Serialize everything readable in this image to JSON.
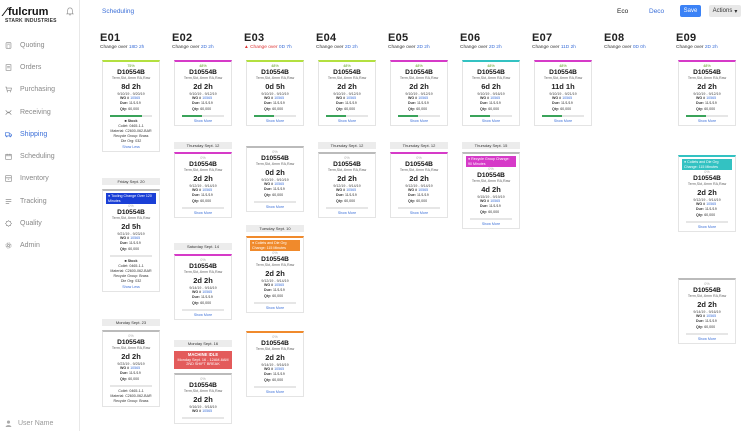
{
  "app": {
    "brand": "fulcrum",
    "company": "STARK INDUSTRIES"
  },
  "sidebar": {
    "items": [
      {
        "label": "Quoting",
        "icon": "calculator-icon",
        "active": false
      },
      {
        "label": "Orders",
        "icon": "orders-icon",
        "active": false
      },
      {
        "label": "Purchasing",
        "icon": "cart-icon",
        "active": false
      },
      {
        "label": "Receiving",
        "icon": "receiving-icon",
        "active": false
      },
      {
        "label": "Shipping",
        "icon": "truck-icon",
        "active": true
      },
      {
        "label": "Scheduling",
        "icon": "calendar-icon",
        "active": false
      },
      {
        "label": "Inventory",
        "icon": "inventory-icon",
        "active": false
      },
      {
        "label": "Tracking",
        "icon": "tracking-icon",
        "active": false
      },
      {
        "label": "Quality",
        "icon": "quality-icon",
        "active": false
      },
      {
        "label": "Admin",
        "icon": "gear-icon",
        "active": false
      }
    ],
    "user": "User Name"
  },
  "topbar": {
    "breadcrumb": "Scheduling",
    "tab_eco": "Eco",
    "tab_deco": "Deco",
    "save": "Save",
    "actions": "Actions"
  },
  "colors": {
    "accent": "#3b6fd8",
    "save": "#3b82f6",
    "lime": "#b3e040",
    "magenta": "#d63ac8",
    "teal": "#33c2c2",
    "orange": "#f08a2c",
    "idle": "#e35b5b",
    "blue_banner": "#1a3fd6"
  },
  "columns": [
    {
      "id": "E01",
      "prefix": "Change over ",
      "value": "18D 2h",
      "warn": false
    },
    {
      "id": "E02",
      "prefix": "Change over ",
      "value": "2D 2h",
      "warn": false
    },
    {
      "id": "E03",
      "prefix": "Change over ",
      "value": "0D 7h",
      "warn": true
    },
    {
      "id": "E04",
      "prefix": "Change over ",
      "value": "2D 2h",
      "warn": false
    },
    {
      "id": "E05",
      "prefix": "Change over ",
      "value": "2D 2h",
      "warn": false
    },
    {
      "id": "E06",
      "prefix": "Change over ",
      "value": "2D 2h",
      "warn": false
    },
    {
      "id": "E07",
      "prefix": "Change over ",
      "value": "11D 2h",
      "warn": false
    },
    {
      "id": "E08",
      "prefix": "Change over ",
      "value": "0D 0h",
      "warn": false
    },
    {
      "id": "E09",
      "prefix": "Change over ",
      "value": "2D 2h",
      "warn": false
    }
  ],
  "cards": {
    "e01a": {
      "pct": "75%",
      "wo": "D10554B",
      "sub": "Term,Skt,.6mm RA,Raw",
      "dur": "8d 2h",
      "dates": "9/10/19 - 9/20/19",
      "wo_label": "WO #",
      "wo_num": "10565",
      "due_label": "Due:",
      "due": "11/1/19",
      "qty_label": "Qty:",
      "qty": "60,000",
      "stock": "Stock",
      "coil": "Coilet: 0465-1-1",
      "material": "Material: C2600-062-BAR",
      "recycle": "Recycle Group: Brass",
      "die": "Die Org: 032",
      "more": "Show Less",
      "progress": 0.75
    },
    "e01b": {
      "pct": "0%",
      "wo": "D10554B",
      "sub": "Term,Skt,.6mm RA,Raw",
      "dur": "2d 5h",
      "dates": "9/21/19 - 9/23/19",
      "wo_label": "WO #",
      "wo_num": "10565",
      "due_label": "Due:",
      "due": "11/1/19",
      "qty_label": "Qty:",
      "qty": "60,000",
      "stock": "Stock",
      "coil": "Coilet: 0465-1-1",
      "material": "Material: C2600-062-BAR",
      "recycle": "Recycle Group: Brass",
      "die": "Die Org: 032",
      "more": "Show Less",
      "progress": 0
    },
    "e01c": {
      "pct": "0%",
      "wo": "D10554B",
      "sub": "Term,Skt,.6mm RA,Raw",
      "dur": "2d 2h",
      "dates": "9/23/19 - 9/25/19",
      "wo_label": "WO #",
      "wo_num": "10565",
      "due_label": "Due:",
      "due": "11/1/19",
      "qty_label": "Qty:",
      "qty": "60,000",
      "coil": "Coilet: 0465-1-1",
      "material": "Material: C2600-062-BAR",
      "recycle": "Recycle Group: Brass",
      "progress": 0
    },
    "e02a": {
      "pct": "48%",
      "wo": "D10554B",
      "sub": "Term,Skt,.6mm RA,Raw",
      "dur": "2d 2h",
      "dates": "9/10/19 - 9/12/19",
      "wo_label": "WO #",
      "wo_num": "10565",
      "due_label": "Due:",
      "due": "11/1/19",
      "qty_label": "Qty:",
      "qty": "60,000",
      "more": "Show More",
      "progress": 0.48
    },
    "e02b": {
      "pct": "0%",
      "wo": "D10554B",
      "sub": "Term,Skt,.6mm RA,Raw",
      "dur": "2d 2h",
      "dates": "9/12/19 - 9/14/19",
      "wo_label": "WO #",
      "wo_num": "10565",
      "due_label": "Due:",
      "due": "11/1/19",
      "qty_label": "Qty:",
      "qty": "60,000",
      "more": "Show More",
      "progress": 0
    },
    "e02c": {
      "pct": "0%",
      "wo": "D10554B",
      "sub": "Term,Skt,.6mm RA,Raw",
      "dur": "2d 2h",
      "dates": "9/14/19 - 9/16/19",
      "wo_label": "WO #",
      "wo_num": "10565",
      "due_label": "Due:",
      "due": "11/1/19",
      "qty_label": "Qty:",
      "qty": "60,000",
      "more": "Show More",
      "progress": 0
    },
    "e02d": {
      "pct": "0%",
      "wo": "D10554B",
      "sub": "Term,Skt,.6mm RA,Raw",
      "dur": "2d 2h",
      "dates": "9/16/19 - 9/18/19",
      "wo_label": "WO #",
      "wo_num": "10565",
      "progress": 0
    },
    "e03a": {
      "pct": "48%",
      "wo": "D10554B",
      "sub": "Term,Skt,.6mm RA,Raw",
      "dur": "0d 5h",
      "dates": "9/10/19 - 9/10/19",
      "wo_label": "WO #",
      "wo_num": "10565",
      "due_label": "Due:",
      "due": "11/1/19",
      "qty_label": "Qty:",
      "qty": "60,000",
      "more": "Show More",
      "progress": 0.48
    },
    "e03b": {
      "pct": "0%",
      "wo": "D10554B",
      "sub": "Term,Skt,.6mm RA,Raw",
      "dur": "0d 2h",
      "dates": "9/10/19 - 9/10/19",
      "wo_label": "WO #",
      "wo_num": "10565",
      "due_label": "Due:",
      "due": "11/1/19",
      "qty_label": "Qty:",
      "qty": "60,000",
      "more": "Show More",
      "progress": 0
    },
    "e03c": {
      "pct": "0%",
      "wo": "D10554B",
      "sub": "Term,Skt,.6mm RA,Raw",
      "dur": "2d 2h",
      "dates": "9/12/19 - 9/14/19",
      "wo_label": "WO #",
      "wo_num": "10565",
      "due_label": "Due:",
      "due": "11/1/19",
      "qty_label": "Qty:",
      "qty": "60,000",
      "more": "Show More",
      "progress": 0
    },
    "e03d": {
      "pct": "0%",
      "wo": "D10554B",
      "sub": "Term,Skt,.6mm RA,Raw",
      "dur": "2d 2h",
      "dates": "9/14/19 - 9/16/19",
      "wo_label": "WO #",
      "wo_num": "10565",
      "due_label": "Due:",
      "due": "11/1/19",
      "qty_label": "Qty:",
      "qty": "60,000",
      "more": "Show More",
      "progress": 0
    },
    "e04a": {
      "pct": "48%",
      "wo": "D10554B",
      "sub": "Term,Skt,.6mm RA,Raw",
      "dur": "2d 2h",
      "dates": "9/10/19 - 9/12/19",
      "wo_label": "WO #",
      "wo_num": "10565",
      "due_label": "Due:",
      "due": "11/1/19",
      "qty_label": "Qty:",
      "qty": "60,000",
      "more": "Show More",
      "progress": 0.48
    },
    "e04b": {
      "pct": "0%",
      "wo": "D10554B",
      "sub": "Term,Skt,.6mm RA,Raw",
      "dur": "2d 2h",
      "dates": "9/12/19 - 9/14/19",
      "wo_label": "WO #",
      "wo_num": "10565",
      "due_label": "Due:",
      "due": "11/1/19",
      "qty_label": "Qty:",
      "qty": "60,000",
      "more": "Show More",
      "progress": 0
    },
    "e05a": {
      "pct": "48%",
      "wo": "D10554B",
      "sub": "Term,Skt,.6mm RA,Raw",
      "dur": "2d 2h",
      "dates": "9/10/19 - 9/12/19",
      "wo_label": "WO #",
      "wo_num": "10565",
      "due_label": "Due:",
      "due": "11/1/19",
      "qty_label": "Qty:",
      "qty": "60,000",
      "more": "Show More",
      "progress": 0.48
    },
    "e05b": {
      "pct": "0%",
      "wo": "D10554B",
      "sub": "Term,Skt,.6mm RA,Raw",
      "dur": "2d 2h",
      "dates": "9/12/19 - 9/14/19",
      "wo_label": "WO #",
      "wo_num": "10565",
      "due_label": "Due:",
      "due": "11/1/19",
      "qty_label": "Qty:",
      "qty": "60,000",
      "more": "Show More",
      "progress": 0
    },
    "e06a": {
      "pct": "48%",
      "wo": "D10554B",
      "sub": "Term,Skt,.6mm RA,Raw",
      "dur": "6d 2h",
      "dates": "9/10/19 - 9/16/19",
      "wo_label": "WO #",
      "wo_num": "10565",
      "due_label": "Due:",
      "due": "11/1/19",
      "qty_label": "Qty:",
      "qty": "60,000",
      "more": "Show More",
      "progress": 0.48
    },
    "e06b": {
      "pct": "0%",
      "wo": "D10554B",
      "sub": "Term,Skt,.6mm RA,Raw",
      "dur": "4d 2h",
      "dates": "9/15/19 - 9/19/19",
      "wo_label": "WO #",
      "wo_num": "10565",
      "due_label": "Due:",
      "due": "11/1/19",
      "qty_label": "Qty:",
      "qty": "60,000",
      "more": "Show More",
      "progress": 0
    },
    "e07a": {
      "pct": "48%",
      "wo": "D10554B",
      "sub": "Term,Skt,.6mm RA,Raw",
      "dur": "11d 1h",
      "dates": "9/10/19 - 9/21/19",
      "wo_label": "WO #",
      "wo_num": "10565",
      "due_label": "Due:",
      "due": "11/1/19",
      "qty_label": "Qty:",
      "qty": "60,000",
      "more": "Show More",
      "progress": 0.48
    },
    "e09a": {
      "pct": "48%",
      "wo": "D10554B",
      "sub": "Term,Skt,.6mm RA,Raw",
      "dur": "2d 2h",
      "dates": "9/10/19 - 9/12/19",
      "wo_label": "WO #",
      "wo_num": "10565",
      "due_label": "Due:",
      "due": "11/1/19",
      "qty_label": "Qty:",
      "qty": "60,000",
      "more": "Show More",
      "progress": 0.48
    },
    "e09b": {
      "pct": "0%",
      "wo": "D10554B",
      "sub": "Term,Skt,.6mm RA,Raw",
      "dur": "2d 2h",
      "dates": "9/12/19 - 9/14/19",
      "wo_label": "WO #",
      "wo_num": "10565",
      "due_label": "Due:",
      "due": "11/1/19",
      "qty_label": "Qty:",
      "qty": "60,000",
      "more": "Show More",
      "progress": 0
    },
    "e09c": {
      "pct": "0%",
      "wo": "D10554B",
      "sub": "Term,Skt,.6mm RA,Raw",
      "dur": "2d 2h",
      "dates": "9/14/19 - 9/16/19",
      "wo_label": "WO #",
      "wo_num": "10565",
      "due_label": "Due:",
      "due": "11/1/19",
      "qty_label": "Qty:",
      "qty": "60,000",
      "more": "Show More",
      "progress": 0
    }
  },
  "dividers": {
    "e01_fri": "Friday Sept. 20",
    "e01_mon": "Monday Sept. 23",
    "e02_thu": "Thursday Sept. 12",
    "e02_sat": "Saturday Sept. 14",
    "e02_mon": "Monday Sept. 16",
    "e03_tue": "Tuesday Sept. 10",
    "e04_thu": "Thursday Sept. 12",
    "e05_thu": "Thursday Sept. 12",
    "e06_thu": "Thursday Sept. 15"
  },
  "banners": {
    "e01_tooling": "Tooling Change Over 120 Minutes",
    "e03_coil": "Coilets and Die Org Change: 115 Minutes",
    "e06_recycle": "Recycle Group Change: 90 Minutes",
    "e09_coil": "Coilets and Die Org Change: 115 Minutes"
  },
  "idle": {
    "title": "MACHINE IDLE",
    "line1": "Monday Sept. 16 - 12AM-6AM",
    "line2": "2ND SHIFT BREAK"
  }
}
